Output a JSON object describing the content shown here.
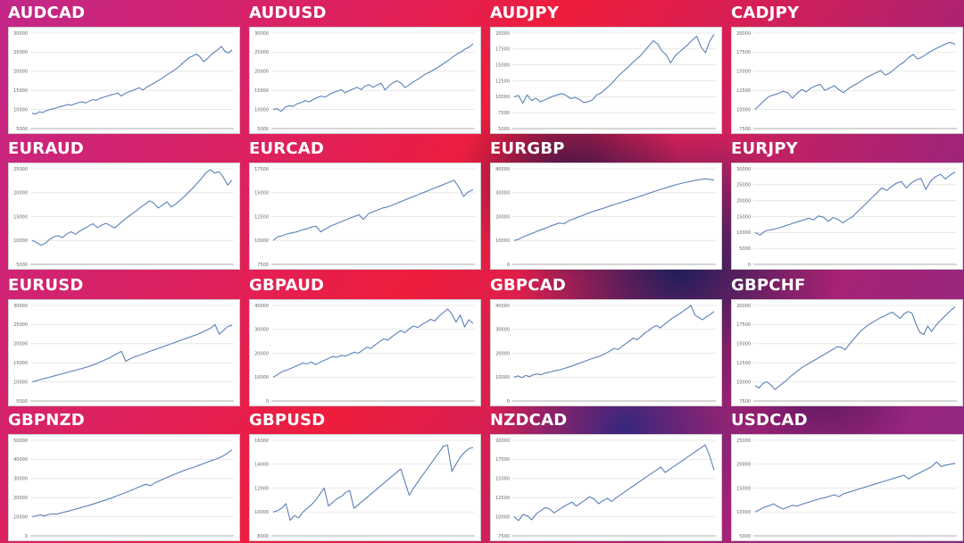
{
  "chart_data": [
    {
      "type": "line",
      "title": "AUDCAD",
      "ylim": [
        5000,
        30000
      ],
      "yticks": [
        5000,
        10000,
        15000,
        20000,
        25000,
        30000
      ],
      "grid": true,
      "series": [
        {
          "values": [
            9000,
            8800,
            9400,
            9200,
            9700,
            10000,
            10200,
            10500,
            10800,
            11000,
            11300,
            11100,
            11500,
            11800,
            12000,
            11700,
            12200,
            12600,
            12400,
            12900,
            13200,
            13500,
            13800,
            14000,
            14300,
            13500,
            14200,
            14600,
            14900,
            15300,
            15700,
            15100,
            15800,
            16300,
            16800,
            17400,
            17900,
            18600,
            19200,
            19800,
            20400,
            21100,
            22000,
            22800,
            23600,
            24000,
            24500,
            23800,
            22500,
            23200,
            24200,
            25000,
            25600,
            26500,
            25200,
            24800,
            25600
          ]
        }
      ]
    },
    {
      "type": "line",
      "title": "AUDUSD",
      "ylim": [
        5000,
        30000
      ],
      "yticks": [
        5000,
        10000,
        15000,
        20000,
        25000,
        30000
      ],
      "grid": true,
      "series": [
        {
          "values": [
            10000,
            10200,
            9500,
            10600,
            11000,
            10800,
            11500,
            11800,
            12300,
            12000,
            12600,
            13100,
            13500,
            13200,
            13900,
            14400,
            14800,
            15200,
            14400,
            14900,
            15400,
            15800,
            15200,
            16100,
            16500,
            15800,
            16400,
            16900,
            15100,
            16200,
            17000,
            17500,
            16900,
            15700,
            16400,
            17200,
            17800,
            18500,
            19200,
            19700,
            20300,
            20900,
            21600,
            22300,
            23000,
            23800,
            24500,
            25100,
            25800,
            26300,
            27200
          ]
        }
      ]
    },
    {
      "type": "line",
      "title": "AUDJPY",
      "ylim": [
        5000,
        20000
      ],
      "yticks": [
        5000,
        7500,
        10000,
        12500,
        15000,
        17500,
        20000
      ],
      "grid": true,
      "series": [
        {
          "values": [
            10000,
            10200,
            9000,
            10300,
            9400,
            9800,
            9200,
            9500,
            9800,
            10100,
            10300,
            10500,
            10200,
            9700,
            9900,
            9600,
            9100,
            9200,
            9500,
            10300,
            10600,
            11200,
            11800,
            12500,
            13300,
            13900,
            14500,
            15200,
            15800,
            16400,
            17200,
            18000,
            18800,
            18300,
            17200,
            16600,
            15300,
            16400,
            17000,
            17600,
            18200,
            18900,
            19500,
            17800,
            16900,
            18700,
            19800
          ]
        }
      ]
    },
    {
      "type": "line",
      "title": "CADJPY",
      "ylim": [
        7500,
        20000
      ],
      "yticks": [
        7500,
        10000,
        12500,
        15000,
        17500,
        20000
      ],
      "grid": true,
      "series": [
        {
          "values": [
            10000,
            10600,
            11200,
            11700,
            11900,
            12100,
            12400,
            12200,
            11500,
            12100,
            12600,
            12300,
            12800,
            13100,
            13300,
            12500,
            12800,
            13100,
            12600,
            12200,
            12700,
            13100,
            13400,
            13800,
            14200,
            14500,
            14800,
            15100,
            14500,
            14800,
            15300,
            15800,
            16200,
            16800,
            17200,
            16600,
            16900,
            17300,
            17700,
            18000,
            18300,
            18600,
            18800,
            18500
          ]
        }
      ]
    },
    {
      "type": "line",
      "title": "EURAUD",
      "ylim": [
        5000,
        25000
      ],
      "yticks": [
        5000,
        10000,
        15000,
        20000,
        25000
      ],
      "grid": true,
      "series": [
        {
          "values": [
            10000,
            9600,
            9000,
            9400,
            10200,
            10800,
            11000,
            10600,
            11400,
            11800,
            11300,
            12000,
            12500,
            13000,
            13500,
            12700,
            13200,
            13600,
            13100,
            12600,
            13400,
            14200,
            14900,
            15600,
            16200,
            17000,
            17600,
            18300,
            17800,
            16800,
            17400,
            18100,
            17000,
            17600,
            18400,
            19200,
            20100,
            21000,
            22000,
            23000,
            24200,
            24800,
            24100,
            24400,
            23200,
            21600,
            22600
          ]
        }
      ]
    },
    {
      "type": "line",
      "title": "EURCAD",
      "ylim": [
        7500,
        17500
      ],
      "yticks": [
        7500,
        10000,
        12500,
        15000,
        17500
      ],
      "grid": true,
      "series": [
        {
          "values": [
            10000,
            10400,
            10500,
            10700,
            10800,
            10900,
            11100,
            11200,
            11400,
            11500,
            10900,
            11200,
            11500,
            11700,
            11900,
            12100,
            12300,
            12500,
            12700,
            12200,
            12800,
            13000,
            13200,
            13400,
            13500,
            13700,
            13900,
            14100,
            14300,
            14500,
            14700,
            14900,
            15100,
            15300,
            15500,
            15700,
            15900,
            16100,
            16300,
            15600,
            14600,
            15100,
            15300
          ]
        }
      ]
    },
    {
      "type": "line",
      "title": "EURGBP",
      "ylim": [
        0,
        40000
      ],
      "yticks": [
        0,
        10000,
        20000,
        30000,
        40000
      ],
      "grid": true,
      "series": [
        {
          "values": [
            10000,
            10500,
            11500,
            12300,
            13000,
            13800,
            14500,
            15200,
            16000,
            16700,
            17300,
            17000,
            18200,
            19000,
            19700,
            20400,
            21200,
            21900,
            22500,
            23100,
            23700,
            24400,
            25000,
            25600,
            26200,
            26800,
            27400,
            28000,
            28700,
            29300,
            30000,
            30600,
            31200,
            31800,
            32400,
            33000,
            33500,
            34000,
            34400,
            34800,
            35200,
            35500,
            35800,
            35600,
            35300
          ]
        }
      ]
    },
    {
      "type": "line",
      "title": "EURJPY",
      "ylim": [
        0,
        30000
      ],
      "yticks": [
        0,
        5000,
        10000,
        15000,
        20000,
        25000,
        30000
      ],
      "grid": true,
      "series": [
        {
          "values": [
            10000,
            9200,
            10400,
            10800,
            11100,
            11500,
            12000,
            12500,
            13000,
            13500,
            14000,
            14500,
            14000,
            15200,
            14800,
            13500,
            14700,
            14100,
            13000,
            14100,
            15000,
            16500,
            18000,
            19500,
            21000,
            22500,
            24000,
            23200,
            24500,
            25500,
            26000,
            24000,
            25500,
            26500,
            27000,
            23500,
            26200,
            27500,
            28300,
            26800,
            28000,
            29000
          ]
        }
      ]
    },
    {
      "type": "line",
      "title": "EURUSD",
      "ylim": [
        5000,
        30000
      ],
      "yticks": [
        5000,
        10000,
        15000,
        20000,
        25000,
        30000
      ],
      "grid": true,
      "series": [
        {
          "values": [
            10000,
            10300,
            10600,
            10900,
            11200,
            11500,
            11800,
            12100,
            12400,
            12700,
            13000,
            13300,
            13600,
            13900,
            14300,
            14700,
            15200,
            15700,
            16200,
            16800,
            17400,
            18000,
            15400,
            16000,
            16500,
            16900,
            17300,
            17700,
            18100,
            18500,
            18900,
            19300,
            19700,
            20100,
            20500,
            20900,
            21300,
            21700,
            22100,
            22500,
            23000,
            23500,
            24100,
            25000,
            22500,
            23500,
            24500,
            24800
          ]
        }
      ]
    },
    {
      "type": "line",
      "title": "GBPAUD",
      "ylim": [
        0,
        40000
      ],
      "yticks": [
        0,
        10000,
        20000,
        30000,
        40000
      ],
      "grid": true,
      "series": [
        {
          "values": [
            10000,
            11000,
            12200,
            12800,
            13500,
            14300,
            15100,
            15900,
            15500,
            16300,
            15200,
            16200,
            17000,
            17800,
            18600,
            18300,
            19100,
            18800,
            19600,
            20400,
            20000,
            21200,
            22500,
            22000,
            23500,
            24800,
            26000,
            25500,
            27000,
            28300,
            29500,
            28600,
            30200,
            31400,
            30800,
            32000,
            33000,
            34200,
            33500,
            35500,
            37000,
            38500,
            36500,
            33000,
            36000,
            31000,
            34000,
            32500
          ]
        }
      ]
    },
    {
      "type": "line",
      "title": "GBPCAD",
      "ylim": [
        0,
        40000
      ],
      "yticks": [
        0,
        10000,
        20000,
        30000,
        40000
      ],
      "grid": true,
      "series": [
        {
          "values": [
            10000,
            10500,
            9800,
            10700,
            10200,
            11000,
            11300,
            11000,
            11700,
            12000,
            12400,
            12800,
            13100,
            13600,
            14100,
            14600,
            15200,
            15800,
            16400,
            17000,
            17600,
            18100,
            18600,
            19300,
            20100,
            21000,
            22000,
            21500,
            22800,
            24000,
            25000,
            26300,
            25600,
            27000,
            28500,
            29500,
            30800,
            31500,
            30600,
            32000,
            33200,
            34500,
            35500,
            36500,
            37600,
            38800,
            40000,
            36000,
            35000,
            34000,
            35300,
            36200,
            37500
          ]
        }
      ]
    },
    {
      "type": "line",
      "title": "GBPCHF",
      "ylim": [
        7500,
        20000
      ],
      "yticks": [
        7500,
        10000,
        12500,
        15000,
        17500,
        20000
      ],
      "grid": true,
      "series": [
        {
          "values": [
            9500,
            9200,
            9800,
            10000,
            9600,
            9000,
            9400,
            9800,
            10200,
            10700,
            11100,
            11500,
            11900,
            12200,
            12500,
            12800,
            13100,
            13400,
            13700,
            14000,
            14300,
            14600,
            14500,
            14200,
            14900,
            15500,
            16100,
            16700,
            17100,
            17500,
            17800,
            18100,
            18400,
            18600,
            18900,
            19100,
            18700,
            18300,
            18900,
            19200,
            19000,
            17600,
            16500,
            16200,
            17300,
            16600,
            17300,
            17900,
            18400,
            18900,
            19400,
            19800
          ]
        }
      ]
    },
    {
      "type": "line",
      "title": "GBPNZD",
      "ylim": [
        0,
        50000
      ],
      "yticks": [
        0,
        10000,
        20000,
        30000,
        40000,
        50000
      ],
      "grid": true,
      "series": [
        {
          "values": [
            10000,
            10500,
            11000,
            10400,
            11200,
            11500,
            11300,
            12000,
            12500,
            13000,
            13600,
            14200,
            14800,
            15400,
            16000,
            16700,
            17400,
            18100,
            18800,
            19500,
            20300,
            21100,
            21900,
            22700,
            23600,
            24500,
            25400,
            26300,
            27000,
            26200,
            27600,
            28600,
            29600,
            30500,
            31400,
            32300,
            33200,
            34000,
            34800,
            35500,
            36200,
            37000,
            37800,
            38600,
            39400,
            40200,
            41000,
            42000,
            43500,
            45000
          ]
        }
      ]
    },
    {
      "type": "line",
      "title": "GBPUSD",
      "ylim": [
        8000,
        16000
      ],
      "yticks": [
        8000,
        10000,
        12000,
        14000,
        16000
      ],
      "grid": true,
      "series": [
        {
          "values": [
            10000,
            10100,
            10300,
            10700,
            9300,
            9700,
            9500,
            10000,
            10300,
            10600,
            11000,
            11500,
            12000,
            10500,
            10800,
            11100,
            11300,
            11600,
            11800,
            10300,
            10600,
            10900,
            11200,
            11500,
            11800,
            12100,
            12400,
            12700,
            13000,
            13300,
            13600,
            12500,
            11400,
            12000,
            12500,
            13000,
            13500,
            14000,
            14500,
            15000,
            15500,
            15600,
            13400,
            14000,
            14600,
            15000,
            15300,
            15400
          ]
        }
      ]
    },
    {
      "type": "line",
      "title": "NZDCAD",
      "ylim": [
        7500,
        20000
      ],
      "yticks": [
        7500,
        10000,
        12500,
        15000,
        17500,
        20000
      ],
      "grid": true,
      "series": [
        {
          "values": [
            10000,
            9500,
            10300,
            10100,
            9600,
            10400,
            10800,
            11200,
            11000,
            10500,
            10900,
            11300,
            11600,
            11900,
            11400,
            11800,
            12200,
            12600,
            12300,
            11700,
            12100,
            12400,
            12000,
            12500,
            12900,
            13300,
            13700,
            14100,
            14500,
            14900,
            15300,
            15700,
            16100,
            16500,
            15800,
            16200,
            16600,
            17000,
            17400,
            17800,
            18200,
            18600,
            19000,
            19400,
            18000,
            16100
          ]
        }
      ]
    },
    {
      "type": "line",
      "title": "USDCAD",
      "ylim": [
        5000,
        25000
      ],
      "yticks": [
        5000,
        10000,
        15000,
        20000,
        25000
      ],
      "grid": true,
      "series": [
        {
          "values": [
            10000,
            10500,
            11000,
            11300,
            11700,
            11100,
            10600,
            11000,
            11400,
            11200,
            11600,
            11900,
            12200,
            12500,
            12800,
            13000,
            13300,
            13600,
            13200,
            13800,
            14100,
            14400,
            14700,
            15000,
            15300,
            15600,
            15900,
            16200,
            16500,
            16800,
            17100,
            17400,
            17700,
            16900,
            17500,
            18000,
            18500,
            19000,
            19500,
            20500,
            19500,
            19800,
            20000,
            20200
          ]
        }
      ]
    }
  ]
}
